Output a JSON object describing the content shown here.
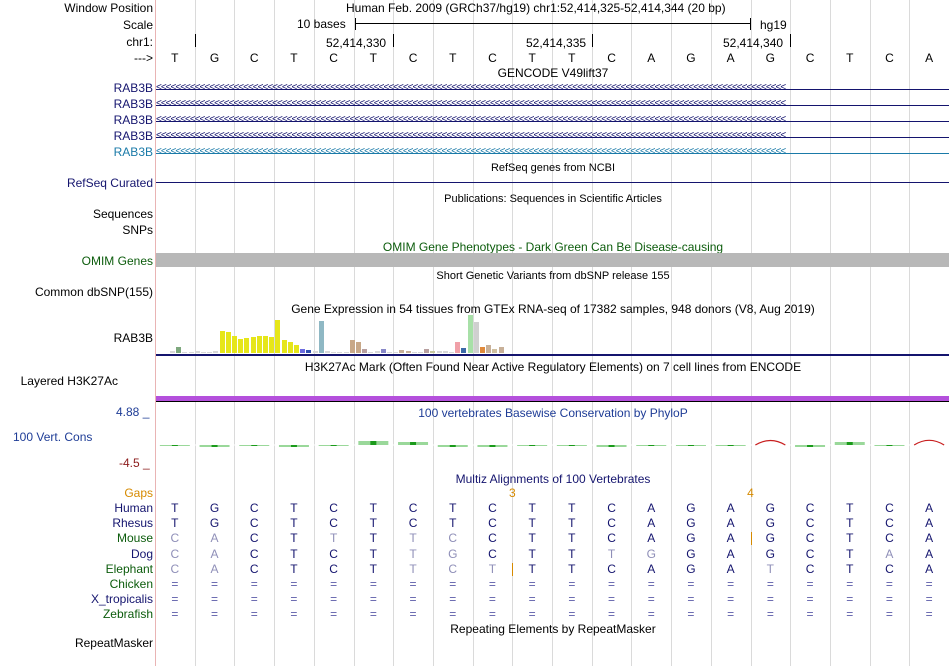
{
  "header": {
    "window_position_label": "Window Position",
    "window_position_value": "Human Feb. 2009 (GRCh37/hg19)   chr1:52,414,325-52,414,344 (20 bp)",
    "scale_label": "Scale",
    "scale_text": "10 bases",
    "scale_assembly": "hg19",
    "chrom_label": "chr1:",
    "strand_label": "--->",
    "positions": [
      "52,414,330",
      "52,414,335",
      "52,414,340"
    ],
    "bases": [
      "T",
      "G",
      "C",
      "T",
      "C",
      "T",
      "C",
      "T",
      "C",
      "T",
      "T",
      "C",
      "A",
      "G",
      "A",
      "G",
      "C",
      "T",
      "C",
      "A"
    ]
  },
  "gencode": {
    "title": "GENCODE V49lift37",
    "rows": [
      {
        "label": "RAB3B",
        "color": "#14146e"
      },
      {
        "label": "RAB3B",
        "color": "#14146e"
      },
      {
        "label": "RAB3B",
        "color": "#14146e"
      },
      {
        "label": "RAB3B",
        "color": "#14146e"
      },
      {
        "label": "RAB3B",
        "color": "#1a7aa8"
      }
    ]
  },
  "refseq": {
    "title": "RefSeq genes from NCBI",
    "label": "RefSeq Curated"
  },
  "publications": {
    "title": "Publications: Sequences in Scientific Articles",
    "label": "Sequences"
  },
  "snps": {
    "label": "SNPs"
  },
  "omim": {
    "title": "OMIM Gene Phenotypes - Dark Green Can Be Disease-causing",
    "label": "OMIM Genes",
    "color": "#0c5c0c"
  },
  "dbsnp": {
    "title": "Short Genetic Variants from dbSNP release 155",
    "label": "Common dbSNP(155)"
  },
  "gtex": {
    "title": "Gene Expression in 54 tissues from GTEx RNA-seq of 17382 samples, 948 donors (V8, Aug 2019)",
    "label": "RAB3B",
    "bars": [
      {
        "h": 0.05,
        "c": "#d8d8d8"
      },
      {
        "h": 0.16,
        "c": "#7ea87e"
      },
      {
        "h": 0.03,
        "c": "#d8d8d8"
      },
      {
        "h": 0.02,
        "c": "#d8d8d8"
      },
      {
        "h": 0.06,
        "c": "#d8d8d8"
      },
      {
        "h": 0.03,
        "c": "#d8d8d8"
      },
      {
        "h": 0.02,
        "c": "#d8d8d8"
      },
      {
        "h": 0.06,
        "c": "#d8d8d8"
      },
      {
        "h": 0.58,
        "c": "#e6e619"
      },
      {
        "h": 0.56,
        "c": "#e6e619"
      },
      {
        "h": 0.46,
        "c": "#e6e619"
      },
      {
        "h": 0.38,
        "c": "#e6e619"
      },
      {
        "h": 0.4,
        "c": "#e6e619"
      },
      {
        "h": 0.42,
        "c": "#e6e619"
      },
      {
        "h": 0.44,
        "c": "#e6e619"
      },
      {
        "h": 0.46,
        "c": "#e6e619"
      },
      {
        "h": 0.43,
        "c": "#e6e619"
      },
      {
        "h": 0.88,
        "c": "#e6e619"
      },
      {
        "h": 0.34,
        "c": "#e6e619"
      },
      {
        "h": 0.3,
        "c": "#e6e619"
      },
      {
        "h": 0.2,
        "c": "#e6e619"
      },
      {
        "h": 0.1,
        "c": "#6c6ce0"
      },
      {
        "h": 0.08,
        "c": "#2f4fb0"
      },
      {
        "h": 0.06,
        "c": "#d8d8d8"
      },
      {
        "h": 0.84,
        "c": "#8fb8c4"
      },
      {
        "h": 0.05,
        "c": "#d8d8d8"
      },
      {
        "h": 0.02,
        "c": "#d8d8d8"
      },
      {
        "h": 0.02,
        "c": "#d8d8d8"
      },
      {
        "h": 0.03,
        "c": "#d8d8d8"
      },
      {
        "h": 0.34,
        "c": "#c8a888"
      },
      {
        "h": 0.3,
        "c": "#c8a888"
      },
      {
        "h": 0.1,
        "c": "#b8a0a0"
      },
      {
        "h": 0.02,
        "c": "#d8d8d8"
      },
      {
        "h": 0.04,
        "c": "#d8d8d8"
      },
      {
        "h": 0.1,
        "c": "#8888c8"
      },
      {
        "h": 0.02,
        "c": "#d8d8d8"
      },
      {
        "h": 0.02,
        "c": "#d8d8d8"
      },
      {
        "h": 0.08,
        "c": "#c8b098"
      },
      {
        "h": 0.06,
        "c": "#c8b098"
      },
      {
        "h": 0.02,
        "c": "#d8d8d8"
      },
      {
        "h": 0.02,
        "c": "#d8d8d8"
      },
      {
        "h": 0.1,
        "c": "#b8a0a0"
      },
      {
        "h": 0.04,
        "c": "#c8c8a0"
      },
      {
        "h": 0.06,
        "c": "#d8d8d8"
      },
      {
        "h": 0.04,
        "c": "#d8d8d8"
      },
      {
        "h": 0.02,
        "c": "#d8d8d8"
      },
      {
        "h": 0.3,
        "c": "#f0a0a8"
      },
      {
        "h": 0.14,
        "c": "#3c6aa8"
      },
      {
        "h": 1.0,
        "c": "#a8e0a8"
      },
      {
        "h": 0.82,
        "c": "#d0d0d0"
      },
      {
        "h": 0.16,
        "c": "#e08a3c"
      },
      {
        "h": 0.2,
        "c": "#c8b098"
      },
      {
        "h": 0.1,
        "c": "#d0c0a0"
      },
      {
        "h": 0.16,
        "c": "#c8b098"
      }
    ]
  },
  "h3k27ac": {
    "title": "H3K27Ac Mark (Often Found Near Active Regulatory Elements) on 7 cell lines from ENCODE",
    "label": "Layered H3K27Ac"
  },
  "phylop": {
    "title": "100 vertebrates Basewise Conservation by PhyloP",
    "label": "100 Vert. Cons",
    "max_label": "4.88 _",
    "min_label": "-4.5 _",
    "scores": [
      -0.1,
      -0.3,
      -0.1,
      -0.3,
      -0.1,
      0.5,
      0.4,
      -0.3,
      -0.3,
      -0.1,
      -0.1,
      -0.3,
      -0.1,
      -0.1,
      -0.1,
      1.1,
      -0.2,
      0.4,
      -0.1,
      1.2
    ]
  },
  "multiz": {
    "title": "Multiz Alignments of 100 Vertebrates",
    "gaps_label": "Gaps",
    "gap_counts": [
      {
        "after_index": 8,
        "count": "3"
      },
      {
        "after_index": 14,
        "count": "4"
      }
    ],
    "species": [
      {
        "name": "Human",
        "color": "#14146e",
        "seq": [
          "T",
          "G",
          "C",
          "T",
          "C",
          "T",
          "C",
          "T",
          "C",
          "T",
          "T",
          "C",
          "A",
          "G",
          "A",
          "G",
          "C",
          "T",
          "C",
          "A"
        ]
      },
      {
        "name": "Rhesus",
        "color": "#14146e",
        "seq": [
          "T",
          "G",
          "C",
          "T",
          "C",
          "T",
          "C",
          "T",
          "C",
          "T",
          "T",
          "C",
          "A",
          "G",
          "A",
          "G",
          "C",
          "T",
          "C",
          "A"
        ]
      },
      {
        "name": "Mouse",
        "color": "#0c5c0c",
        "seq": [
          "C",
          "A",
          "C",
          "T",
          "T",
          "T",
          "T",
          "C",
          "C",
          "T",
          "T",
          "C",
          "A",
          "G",
          "A",
          "G",
          "C",
          "T",
          "C",
          "A"
        ],
        "gray": [
          0,
          1,
          4,
          6,
          7
        ],
        "insert_after": [
          14
        ]
      },
      {
        "name": "Dog",
        "color": "#14146e",
        "seq": [
          "C",
          "A",
          "C",
          "T",
          "C",
          "T",
          "T",
          "G",
          "C",
          "T",
          "T",
          "T",
          "G",
          "G",
          "A",
          "G",
          "C",
          "T",
          "A",
          "A"
        ],
        "gray": [
          0,
          1,
          6,
          7,
          11,
          12,
          18
        ]
      },
      {
        "name": "Elephant",
        "color": "#0c5c0c",
        "seq": [
          "C",
          "A",
          "C",
          "T",
          "C",
          "T",
          "T",
          "C",
          "T",
          "T",
          "T",
          "C",
          "A",
          "G",
          "A",
          "T",
          "C",
          "T",
          "C",
          "A"
        ],
        "gray": [
          0,
          1,
          6,
          7,
          8,
          15
        ],
        "insert_after": [
          8
        ]
      },
      {
        "name": "Chicken",
        "color": "#0c5c0c",
        "seq": [
          "=",
          "=",
          "=",
          "=",
          "=",
          "=",
          "=",
          "=",
          "=",
          "=",
          "=",
          "=",
          "=",
          "=",
          "=",
          "=",
          "=",
          "=",
          "=",
          "="
        ]
      },
      {
        "name": "X_tropicalis",
        "color": "#14146e",
        "seq": [
          "=",
          "=",
          "=",
          "=",
          "=",
          "=",
          "=",
          "=",
          "=",
          "=",
          "=",
          "=",
          "=",
          "=",
          "=",
          "=",
          "=",
          "=",
          "=",
          "="
        ]
      },
      {
        "name": "Zebrafish",
        "color": "#0c5c0c",
        "seq": [
          "=",
          "=",
          "=",
          "=",
          "=",
          "=",
          "=",
          "=",
          "=",
          "=",
          "=",
          "=",
          "=",
          "=",
          "=",
          "=",
          "=",
          "=",
          "=",
          "="
        ]
      }
    ]
  },
  "repeatmasker": {
    "title": "Repeating Elements by RepeatMasker",
    "label": "RepeatMasker"
  },
  "colors": {
    "separator": "#e9b4b4",
    "gencode_dark": "#14146e",
    "gencode_light": "#1a7aa8",
    "omim_bar": "#b8b8b8",
    "h3k27ac": "#b450dc",
    "phylop_label": "#1e3c96",
    "phylop_max": "#1e3c96",
    "phylop_min": "#8b1a1a",
    "gaps": "#d68a00",
    "title_blue": "#14146e"
  }
}
